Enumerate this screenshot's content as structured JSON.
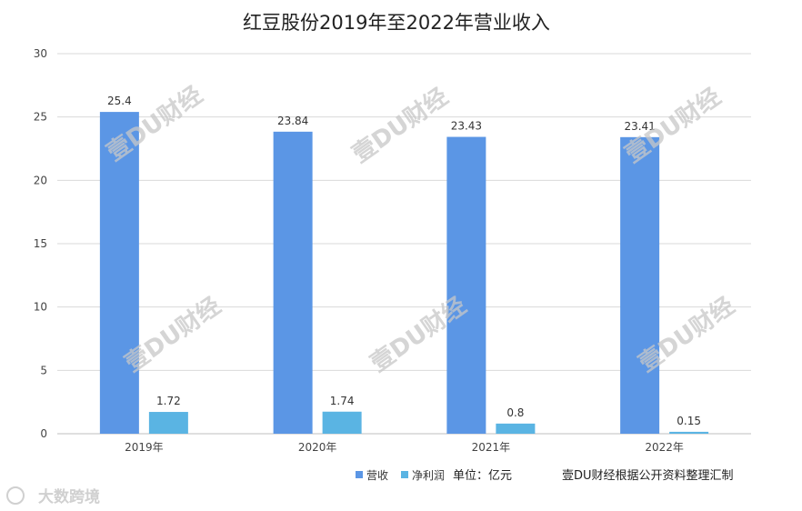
{
  "chart_data": {
    "type": "bar",
    "title": "红豆股份2019年至2022年营业收入",
    "categories": [
      "2019年",
      "2020年",
      "2021年",
      "2022年"
    ],
    "series": [
      {
        "name": "营收",
        "values": [
          25.4,
          23.84,
          23.43,
          23.41
        ],
        "color": "#5b96e5"
      },
      {
        "name": "净利润",
        "values": [
          1.72,
          1.74,
          0.8,
          0.15
        ],
        "color": "#5ab4e3"
      }
    ],
    "value_labels": [
      [
        "25.4",
        "23.84",
        "23.43",
        "23.41"
      ],
      [
        "1.72",
        "1.74",
        "0.8",
        "0.15"
      ]
    ],
    "ylim": [
      0,
      30
    ],
    "yticks": [
      "0",
      "5",
      "10",
      "15",
      "20",
      "25",
      "30"
    ],
    "grid": true,
    "legend": "bottom"
  },
  "unit_label": "单位：亿元",
  "source_label": "壹DU财经根据公开资料整理汇制",
  "watermark": "壹DU财经",
  "logo_text": "大数跨境",
  "colors": {
    "gridline": "#d9d9d9",
    "axis": "#bfbfbf"
  }
}
